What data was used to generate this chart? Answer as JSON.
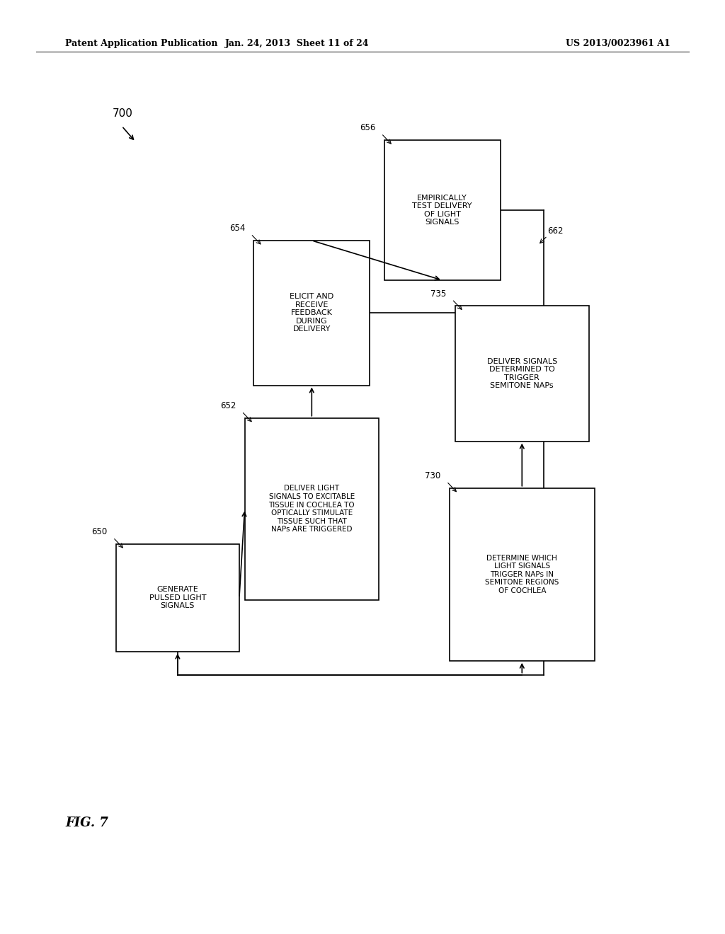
{
  "header_left": "Patent Application Publication",
  "header_mid": "Jan. 24, 2013  Sheet 11 of 24",
  "header_right": "US 2013/0023961 A1",
  "fig_label": "FIG. 7",
  "diagram_label": "700",
  "background_color": "#ffffff",
  "box_edge_color": "#000000",
  "text_color": "#000000",
  "arrow_color": "#000000",
  "linewidth": 1.2
}
